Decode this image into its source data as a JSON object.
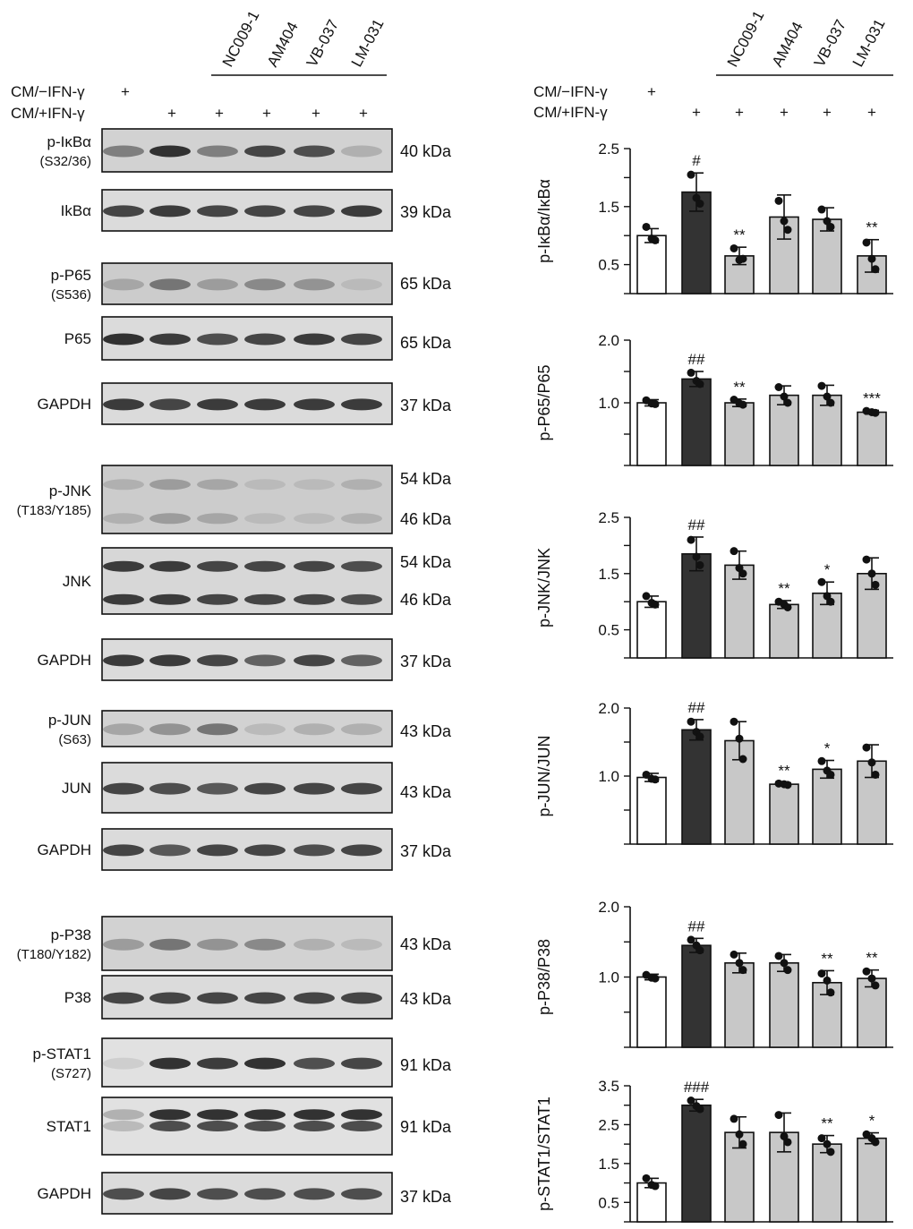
{
  "lanes": [
    "NC009-1",
    "AM404",
    "VB-037",
    "LM-031"
  ],
  "conditions": [
    {
      "label": "CM/−IFN-γ",
      "marks": [
        "+",
        "",
        "",
        "",
        "",
        ""
      ]
    },
    {
      "label": "CM/+IFN-γ",
      "marks": [
        "",
        "+",
        "+",
        "+",
        "+",
        "+"
      ]
    }
  ],
  "blots": [
    {
      "label": "p-IκBα",
      "sublabel": "(S32/36)",
      "sizes": [
        "40 kDa"
      ],
      "bands": 1,
      "intensities": [
        0.55,
        0.95,
        0.55,
        0.85,
        0.8,
        0.3
      ],
      "bg": 0.12
    },
    {
      "label": "IkBα",
      "sublabel": "",
      "sizes": [
        "39 kDa"
      ],
      "bands": 1,
      "intensities": [
        0.85,
        0.9,
        0.85,
        0.85,
        0.85,
        0.9
      ],
      "bg": 0.08
    },
    {
      "label": "p-P65",
      "sublabel": "(S536)",
      "sizes": [
        "65 kDa"
      ],
      "bands": 1,
      "intensities": [
        0.35,
        0.6,
        0.4,
        0.5,
        0.45,
        0.25
      ],
      "bg": 0.15
    },
    {
      "label": "P65",
      "sublabel": "",
      "sizes": [
        "65 kDa"
      ],
      "bands": 1,
      "intensities": [
        0.95,
        0.9,
        0.8,
        0.85,
        0.9,
        0.85
      ],
      "bg": 0.08
    },
    {
      "label": "GAPDH",
      "sublabel": "",
      "sizes": [
        "37 kDa"
      ],
      "bands": 1,
      "intensities": [
        0.9,
        0.85,
        0.9,
        0.9,
        0.9,
        0.9
      ],
      "bg": 0.08
    },
    {
      "label": "p-JNK",
      "sublabel": "(T183/Y185)",
      "sizes": [
        "54 kDa",
        "46 kDa"
      ],
      "bands": 2,
      "intensities": [
        0.3,
        0.4,
        0.35,
        0.25,
        0.25,
        0.3
      ],
      "bg": 0.15
    },
    {
      "label": "JNK",
      "sublabel": "",
      "sizes": [
        "54 kDa",
        "46 kDa"
      ],
      "bands": 2,
      "intensities": [
        0.9,
        0.9,
        0.85,
        0.85,
        0.85,
        0.8
      ],
      "bg": 0.1
    },
    {
      "label": "GAPDH",
      "sublabel": "",
      "sizes": [
        "37 kDa"
      ],
      "bands": 1,
      "intensities": [
        0.9,
        0.9,
        0.85,
        0.7,
        0.85,
        0.7
      ],
      "bg": 0.08
    },
    {
      "label": "p-JUN",
      "sublabel": "(S63)",
      "sizes": [
        "43 kDa"
      ],
      "bands": 1,
      "intensities": [
        0.35,
        0.45,
        0.6,
        0.25,
        0.3,
        0.3
      ],
      "bg": 0.12
    },
    {
      "label": "JUN",
      "sublabel": "",
      "sizes": [
        "43 kDa"
      ],
      "bands": 1,
      "intensities": [
        0.85,
        0.8,
        0.75,
        0.85,
        0.85,
        0.85
      ],
      "bg": 0.08
    },
    {
      "label": "GAPDH",
      "sublabel": "",
      "sizes": [
        "37 kDa"
      ],
      "bands": 1,
      "intensities": [
        0.85,
        0.75,
        0.85,
        0.85,
        0.8,
        0.85
      ],
      "bg": 0.08
    },
    {
      "label": "p-P38",
      "sublabel": "(T180/Y182)",
      "sizes": [
        "43 kDa"
      ],
      "bands": 1,
      "intensities": [
        0.4,
        0.6,
        0.45,
        0.5,
        0.3,
        0.25
      ],
      "bg": 0.12
    },
    {
      "label": "P38",
      "sublabel": "",
      "sizes": [
        "43 kDa"
      ],
      "bands": 1,
      "intensities": [
        0.85,
        0.85,
        0.85,
        0.85,
        0.85,
        0.85
      ],
      "bg": 0.08
    },
    {
      "label": "p-STAT1",
      "sublabel": "(S727)",
      "sizes": [
        "91 kDa"
      ],
      "bands": 1,
      "intensities": [
        0.15,
        0.95,
        0.9,
        0.95,
        0.8,
        0.85
      ],
      "bg": 0.05
    },
    {
      "label": "STAT1",
      "sublabel": "",
      "sizes": [
        "91 kDa"
      ],
      "bands": 2,
      "intensities": [
        0.3,
        0.95,
        0.95,
        0.95,
        0.95,
        0.95
      ],
      "bg": 0.05
    },
    {
      "label": "GAPDH",
      "sublabel": "",
      "sizes": [
        "37 kDa"
      ],
      "bands": 1,
      "intensities": [
        0.8,
        0.85,
        0.8,
        0.8,
        0.8,
        0.8
      ],
      "bg": 0.08
    }
  ],
  "chart_data": [
    {
      "type": "bar",
      "ylabel": "p-IκBα/IκBα",
      "ylim": [
        0,
        2.5
      ],
      "yticks": [
        0.5,
        1.5,
        2.5
      ],
      "values": [
        1.0,
        1.75,
        0.65,
        1.32,
        1.28,
        0.65
      ],
      "errors": [
        0.12,
        0.33,
        0.15,
        0.38,
        0.2,
        0.28
      ],
      "points": [
        [
          1.15,
          0.95,
          0.92
        ],
        [
          2.05,
          1.65,
          1.55
        ],
        [
          0.78,
          0.58,
          0.6
        ],
        [
          1.6,
          1.25,
          1.1
        ],
        [
          1.45,
          1.25,
          1.15
        ],
        [
          0.88,
          0.6,
          0.42
        ]
      ],
      "annotations": [
        "",
        "#",
        "**",
        "",
        "",
        "**"
      ]
    },
    {
      "type": "bar",
      "ylabel": "p-P65/P65",
      "ylim": [
        0,
        2.0
      ],
      "yticks": [
        1.0,
        2.0
      ],
      "values": [
        1.0,
        1.38,
        1.0,
        1.12,
        1.12,
        0.85
      ],
      "errors": [
        0.05,
        0.12,
        0.06,
        0.15,
        0.16,
        0.03
      ],
      "points": [
        [
          1.04,
          0.99,
          0.98
        ],
        [
          1.48,
          1.35,
          1.3
        ],
        [
          1.05,
          0.99,
          0.97
        ],
        [
          1.25,
          1.1,
          1.0
        ],
        [
          1.27,
          1.1,
          1.0
        ],
        [
          0.87,
          0.85,
          0.84
        ]
      ],
      "annotations": [
        "",
        "##",
        "**",
        "",
        "",
        "***"
      ]
    },
    {
      "type": "bar",
      "ylabel": "p-JNK/JNK",
      "ylim": [
        0,
        2.5
      ],
      "yticks": [
        0.5,
        1.5,
        2.5
      ],
      "values": [
        1.0,
        1.85,
        1.65,
        0.95,
        1.15,
        1.5
      ],
      "errors": [
        0.1,
        0.3,
        0.25,
        0.07,
        0.2,
        0.28
      ],
      "points": [
        [
          1.1,
          0.98,
          0.95
        ],
        [
          2.1,
          1.8,
          1.65
        ],
        [
          1.9,
          1.6,
          1.5
        ],
        [
          1.0,
          0.95,
          0.9
        ],
        [
          1.35,
          1.1,
          1.0
        ],
        [
          1.75,
          1.5,
          1.3
        ]
      ],
      "annotations": [
        "",
        "##",
        "",
        "**",
        "*",
        ""
      ]
    },
    {
      "type": "bar",
      "ylabel": "p-JUN/JUN",
      "ylim": [
        0,
        2.0
      ],
      "yticks": [
        1.0,
        2.0
      ],
      "values": [
        0.98,
        1.68,
        1.52,
        0.88,
        1.1,
        1.22
      ],
      "errors": [
        0.06,
        0.15,
        0.28,
        0.02,
        0.13,
        0.24
      ],
      "points": [
        [
          1.02,
          0.96,
          0.95
        ],
        [
          1.8,
          1.65,
          1.58
        ],
        [
          1.8,
          1.55,
          1.25
        ],
        [
          0.89,
          0.88,
          0.87
        ],
        [
          1.22,
          1.08,
          1.02
        ],
        [
          1.42,
          1.2,
          1.02
        ]
      ],
      "annotations": [
        "",
        "##",
        "",
        "**",
        "*",
        ""
      ]
    },
    {
      "type": "bar",
      "ylabel": "p-P38/P38",
      "ylim": [
        0,
        2.0
      ],
      "yticks": [
        1.0,
        2.0
      ],
      "values": [
        1.0,
        1.45,
        1.2,
        1.2,
        0.92,
        0.98
      ],
      "errors": [
        0.04,
        0.1,
        0.14,
        0.12,
        0.17,
        0.12
      ],
      "points": [
        [
          1.03,
          0.99,
          0.98
        ],
        [
          1.53,
          1.45,
          1.38
        ],
        [
          1.32,
          1.2,
          1.1
        ],
        [
          1.3,
          1.2,
          1.1
        ],
        [
          1.05,
          0.95,
          0.78
        ],
        [
          1.08,
          0.98,
          0.88
        ]
      ],
      "annotations": [
        "",
        "##",
        "",
        "",
        "**",
        "**"
      ]
    },
    {
      "type": "bar",
      "ylabel": "p-STAT1/STAT1",
      "ylim": [
        0,
        3.5
      ],
      "yticks": [
        0.5,
        1.5,
        2.5,
        3.5
      ],
      "values": [
        1.0,
        3.0,
        2.3,
        2.3,
        2.0,
        2.15
      ],
      "errors": [
        0.12,
        0.15,
        0.4,
        0.5,
        0.22,
        0.14
      ],
      "points": [
        [
          1.12,
          0.95,
          0.92
        ],
        [
          3.12,
          2.98,
          2.9
        ],
        [
          2.65,
          2.25,
          2.0
        ],
        [
          2.75,
          2.2,
          2.05
        ],
        [
          2.15,
          2.0,
          1.8
        ],
        [
          2.25,
          2.15,
          2.05
        ]
      ],
      "annotations": [
        "",
        "###",
        "",
        "",
        "**",
        "*"
      ]
    }
  ],
  "colors": {
    "control": "#ffffff",
    "positive": "#333333",
    "treated": "#c8c8c8",
    "ink": "#111111"
  }
}
